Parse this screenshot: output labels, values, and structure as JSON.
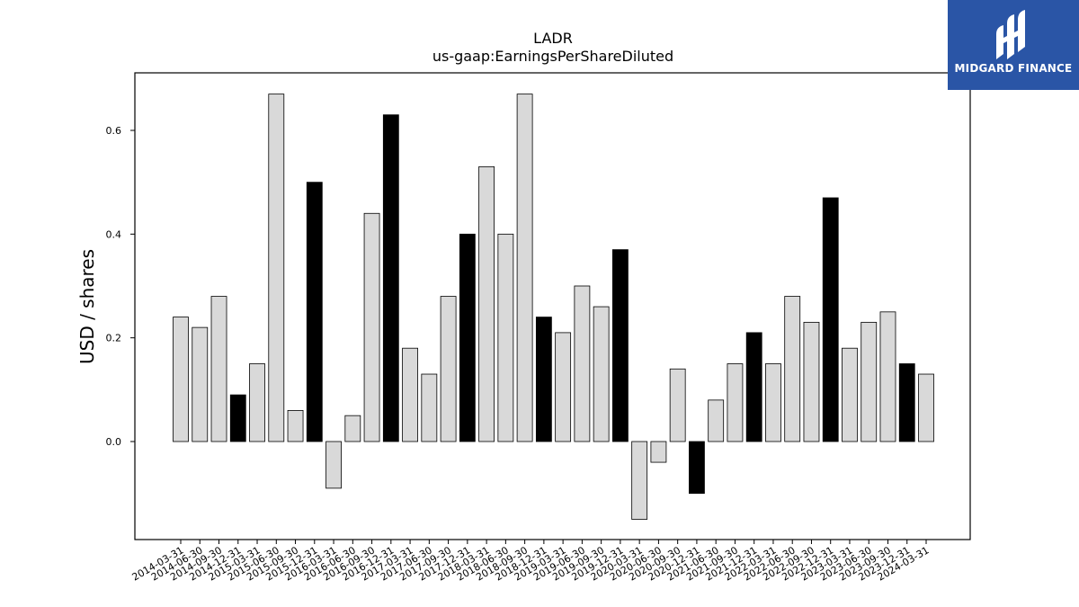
{
  "logo": {
    "text": "MIDGARD FINANCE",
    "color": "#2a55a6"
  },
  "chart_data": {
    "type": "bar",
    "title": "LADR",
    "subtitle": "us-gaap:EarningsPerShareDiluted",
    "xlabel": "",
    "ylabel": "USD / shares",
    "ylim": [
      -0.19,
      0.71
    ],
    "yticks": [
      0.0,
      0.2,
      0.4,
      0.6
    ],
    "grid": false,
    "categories": [
      "2014-03-31",
      "2014-06-30",
      "2014-09-30",
      "2014-12-31",
      "2015-03-31",
      "2015-06-30",
      "2015-09-30",
      "2015-12-31",
      "2016-03-31",
      "2016-06-30",
      "2016-09-30",
      "2016-12-31",
      "2017-03-31",
      "2017-06-30",
      "2017-09-30",
      "2017-12-31",
      "2018-03-31",
      "2018-06-30",
      "2018-09-30",
      "2018-12-31",
      "2019-03-31",
      "2019-06-30",
      "2019-09-30",
      "2019-12-31",
      "2020-03-31",
      "2020-06-30",
      "2020-09-30",
      "2020-12-31",
      "2021-06-30",
      "2021-09-30",
      "2021-12-31",
      "2022-03-31",
      "2022-06-30",
      "2022-09-30",
      "2022-12-31",
      "2023-03-31",
      "2023-06-30",
      "2023-09-30",
      "2023-12-31",
      "2024-03-31"
    ],
    "values": [
      0.24,
      0.22,
      0.28,
      0.09,
      0.15,
      0.67,
      0.06,
      0.5,
      -0.09,
      0.05,
      0.44,
      0.63,
      0.18,
      0.13,
      0.28,
      0.4,
      0.53,
      0.4,
      0.67,
      0.24,
      0.21,
      0.3,
      0.26,
      0.37,
      -0.15,
      -0.04,
      0.14,
      -0.1,
      0.08,
      0.15,
      0.21,
      0.15,
      0.28,
      0.23,
      0.47,
      0.18,
      0.23,
      0.25,
      0.15,
      0.13
    ],
    "highlighted": [
      false,
      false,
      false,
      true,
      false,
      false,
      false,
      true,
      false,
      false,
      false,
      true,
      false,
      false,
      false,
      true,
      false,
      false,
      false,
      true,
      false,
      false,
      false,
      true,
      false,
      false,
      false,
      true,
      false,
      false,
      true,
      false,
      false,
      false,
      true,
      false,
      false,
      false,
      true,
      false
    ],
    "colors": {
      "bar": "#d9d9d9",
      "highlight": "#000000",
      "edge": "#000000"
    }
  }
}
